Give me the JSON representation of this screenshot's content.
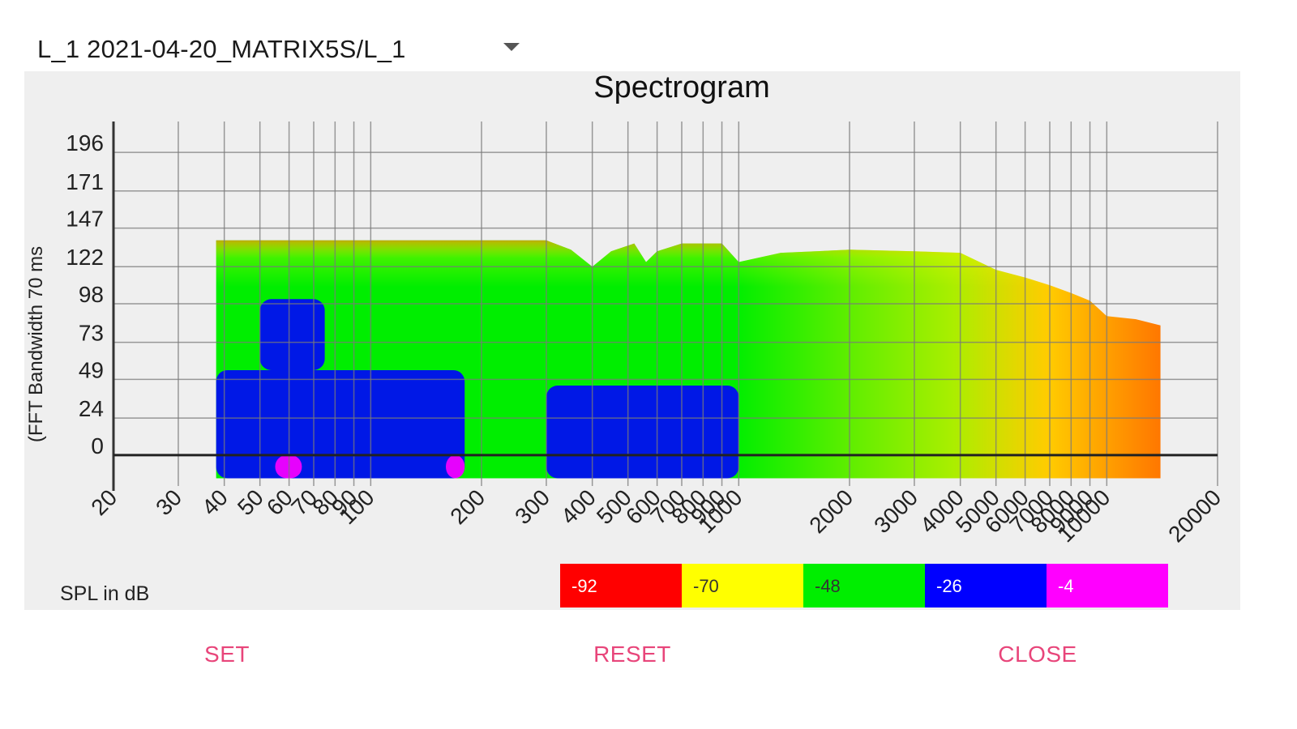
{
  "selector": {
    "value": "L_1 2021-04-20_MATRIX5S/L_1"
  },
  "buttons": {
    "set": "SET",
    "reset": "RESET",
    "close": "CLOSE"
  },
  "chart_data": {
    "type": "heatmap",
    "title": "Spectrogram",
    "xlabel": "",
    "ylabel": "(FFT Bandwidth 70 ms",
    "x_scale": "log",
    "xlim": [
      20,
      20000
    ],
    "x_ticks": [
      20,
      30,
      40,
      50,
      60,
      70,
      80,
      90,
      100,
      200,
      300,
      400,
      500,
      600,
      700,
      800,
      900,
      1000,
      2000,
      3000,
      4000,
      5000,
      6000,
      7000,
      8000,
      9000,
      10000,
      20000
    ],
    "x_tick_labels": [
      "20",
      "30",
      "40",
      "50",
      "60",
      "70",
      "80",
      "90",
      "100",
      "200",
      "300",
      "400",
      "500",
      "600",
      "700",
      "800",
      "900",
      "1000",
      "2000",
      "3000",
      "4000",
      "5000",
      "6000",
      "7000",
      "8000",
      "9000",
      "10000",
      "20000"
    ],
    "ylim": [
      -20,
      216
    ],
    "y_ticks": [
      0,
      24,
      49,
      73,
      98,
      122,
      147,
      171,
      196
    ],
    "y_tick_labels": [
      "0",
      "24",
      "49",
      "73",
      "98",
      "122",
      "147",
      "171",
      "196"
    ],
    "grid": true,
    "legend": {
      "title": "SPL in dB",
      "placement": "bottom",
      "entries": [
        {
          "label": "-92",
          "color": "#ff0000"
        },
        {
          "label": "-70",
          "color": "#ffff00"
        },
        {
          "label": "-48",
          "color": "#00ee00"
        },
        {
          "label": "-26",
          "color": "#0000ff"
        },
        {
          "label": "-4",
          "color": "#ff00ff"
        }
      ]
    },
    "data_extent": {
      "freq_min": 38,
      "freq_max": 14000,
      "time_min": -15
    },
    "top_edge": [
      {
        "freq": 38,
        "time": 139
      },
      {
        "freq": 100,
        "time": 139
      },
      {
        "freq": 300,
        "time": 139
      },
      {
        "freq": 350,
        "time": 133
      },
      {
        "freq": 400,
        "time": 122
      },
      {
        "freq": 450,
        "time": 132
      },
      {
        "freq": 520,
        "time": 137
      },
      {
        "freq": 560,
        "time": 125
      },
      {
        "freq": 600,
        "time": 132
      },
      {
        "freq": 700,
        "time": 137
      },
      {
        "freq": 900,
        "time": 137
      },
      {
        "freq": 1000,
        "time": 125
      },
      {
        "freq": 1300,
        "time": 131
      },
      {
        "freq": 2000,
        "time": 133
      },
      {
        "freq": 3000,
        "time": 132
      },
      {
        "freq": 4000,
        "time": 131
      },
      {
        "freq": 5000,
        "time": 120
      },
      {
        "freq": 6000,
        "time": 115
      },
      {
        "freq": 7000,
        "time": 110
      },
      {
        "freq": 8000,
        "time": 105
      },
      {
        "freq": 9000,
        "time": 100
      },
      {
        "freq": 10000,
        "time": 90
      },
      {
        "freq": 12000,
        "time": 88
      },
      {
        "freq": 14000,
        "time": 84
      }
    ],
    "low_level_regions": [
      {
        "freq_from": 38,
        "freq_to": 180,
        "time_from": -15,
        "time_to": 55,
        "level": "-26"
      },
      {
        "freq_from": 50,
        "freq_to": 75,
        "time_from": 55,
        "time_to": 101,
        "level": "-26"
      },
      {
        "freq_from": 300,
        "freq_to": 1000,
        "time_from": -15,
        "time_to": 45,
        "level": "-26"
      },
      {
        "freq_from": 55,
        "freq_to": 65,
        "time_from": -15,
        "time_to": 0,
        "level": "-4"
      },
      {
        "freq_from": 160,
        "freq_to": 180,
        "time_from": -15,
        "time_to": 0,
        "level": "-4"
      }
    ]
  }
}
